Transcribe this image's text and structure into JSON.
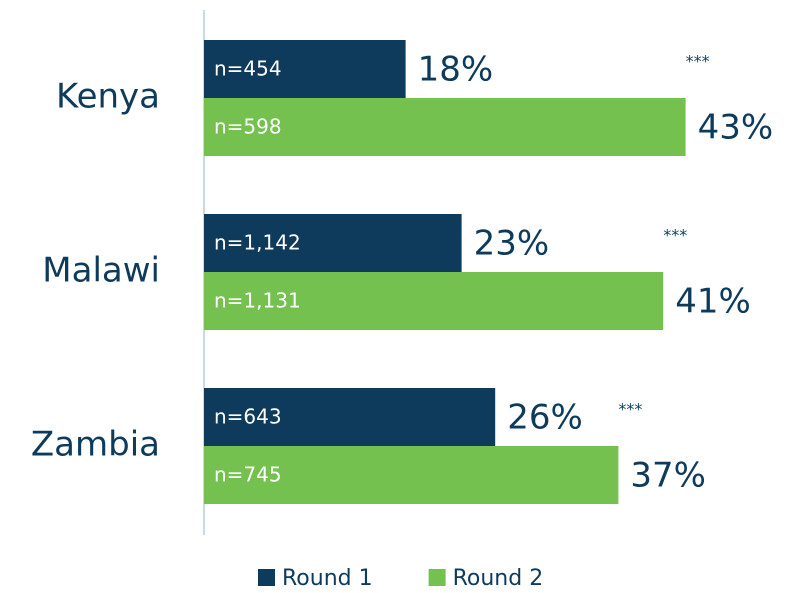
{
  "chart_data": {
    "type": "bar",
    "orientation": "horizontal",
    "categories": [
      "Kenya",
      "Malawi",
      "Zambia"
    ],
    "series": [
      {
        "name": "Round 1",
        "color": "#0e3b5c",
        "values": [
          18,
          23,
          26
        ],
        "value_labels": [
          "18%",
          "23%",
          "26%"
        ],
        "sample_sizes": [
          "n=454",
          "n=1,142",
          "n=643"
        ]
      },
      {
        "name": "Round 2",
        "color": "#74c150",
        "values": [
          43,
          41,
          37
        ],
        "value_labels": [
          "43%",
          "41%",
          "37%"
        ],
        "sample_sizes": [
          "n=598",
          "n=1,131",
          "n=745"
        ]
      }
    ],
    "significance": [
      "***",
      "***",
      "***"
    ],
    "legend": "bottom"
  }
}
